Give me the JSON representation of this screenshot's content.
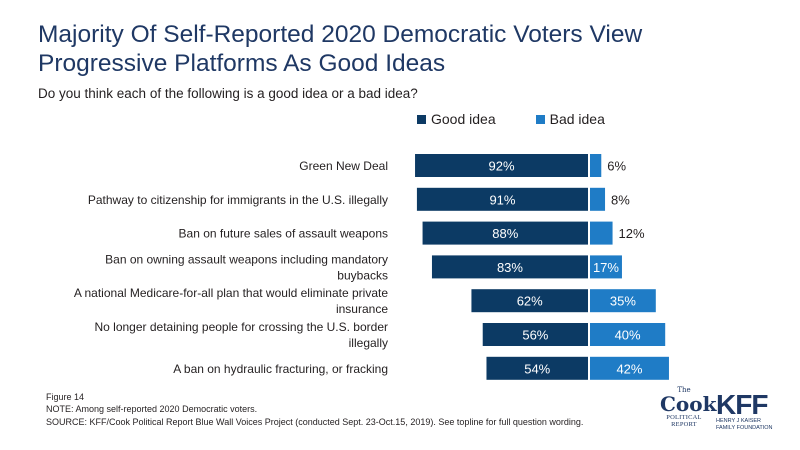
{
  "title_line1": "Majority Of Self-Reported 2020 Democratic Voters View",
  "title_line2": "Progressive Platforms As Good Ideas",
  "subtitle": "Do you think each of the following is a good idea or a bad idea?",
  "colors": {
    "good": "#0c3a64",
    "bad": "#1f7cc6",
    "title": "#1f3864"
  },
  "chart_data": {
    "type": "bar",
    "orientation": "horizontal-diverging",
    "categories": [
      [
        "Green New Deal"
      ],
      [
        "Pathway to citizenship for immigrants in the U.S. illegally"
      ],
      [
        "Ban on future sales of assault weapons"
      ],
      [
        "Ban on owning assault weapons including mandatory",
        "buybacks"
      ],
      [
        "A national Medicare-for-all plan that would eliminate private",
        "insurance"
      ],
      [
        "No longer detaining people for crossing the U.S. border",
        "illegally"
      ],
      [
        "A ban on hydraulic fracturing, or fracking"
      ]
    ],
    "series": [
      {
        "name": "Good idea",
        "values": [
          92,
          91,
          88,
          83,
          62,
          56,
          54
        ],
        "labels": [
          "92%",
          "91%",
          "88%",
          "83%",
          "62%",
          "56%",
          "54%"
        ]
      },
      {
        "name": "Bad idea",
        "values": [
          6,
          8,
          12,
          17,
          35,
          40,
          42
        ],
        "labels": [
          "6%",
          "8%",
          "12%",
          "17%",
          "35%",
          "40%",
          "42%"
        ]
      }
    ],
    "legend_position": "top"
  },
  "footer": {
    "figure": "Figure 14",
    "note": "NOTE: Among self-reported 2020 Democratic voters.",
    "source": "SOURCE: KFF/Cook Political Report Blue Wall Voices Project (conducted Sept. 23-Oct.15, 2019). See topline for full question wording."
  },
  "logos": {
    "cook_the": "The",
    "cook_main": "Cook",
    "cook_sub1": "POLITICAL",
    "cook_sub2": "REPORT",
    "kff_main": "KFF",
    "kff_sub1": "HENRY J KAISER",
    "kff_sub2": "FAMILY FOUNDATION"
  }
}
